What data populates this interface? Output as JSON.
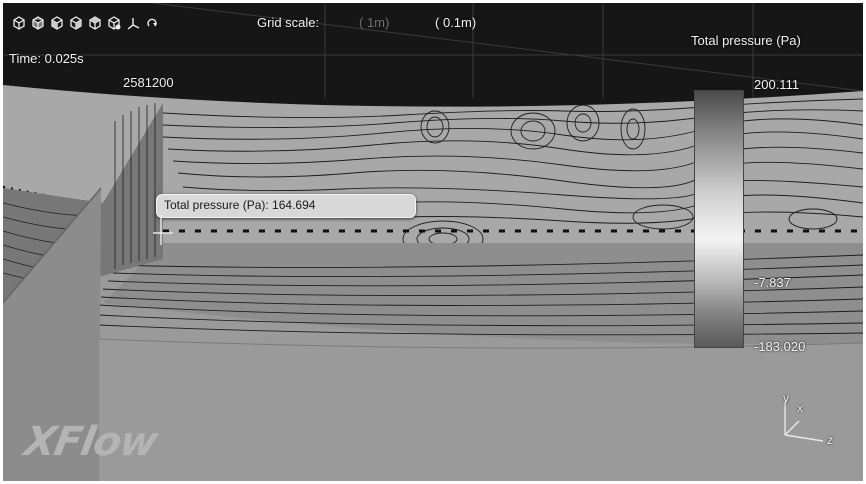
{
  "toolbar": {
    "icons": [
      "view-cube-front-icon",
      "view-cube-back-icon",
      "view-cube-left-icon",
      "view-cube-right-icon",
      "view-cube-top-icon",
      "view-cube-iso-icon",
      "axes-icon",
      "rotate-icon"
    ]
  },
  "grid": {
    "label": "Grid scale:",
    "option_1": "( 1m)",
    "option_2": "( 0.1m)"
  },
  "overlay": {
    "time_label": "Time: 0.025s",
    "partial_readout": "2581200"
  },
  "tooltip": {
    "text": "Total pressure (Pa): 164.694"
  },
  "legend": {
    "title": "Total pressure (Pa)",
    "max": "200.111",
    "mid": "-7.837",
    "min": "-183.020"
  },
  "axes": {
    "x": "x",
    "y": "y",
    "z": "z"
  },
  "brand": {
    "logo": "XFlow"
  },
  "colors": {
    "sky": "#151515",
    "floor": "#9a9a9a",
    "contour": "#1c1c1c"
  }
}
